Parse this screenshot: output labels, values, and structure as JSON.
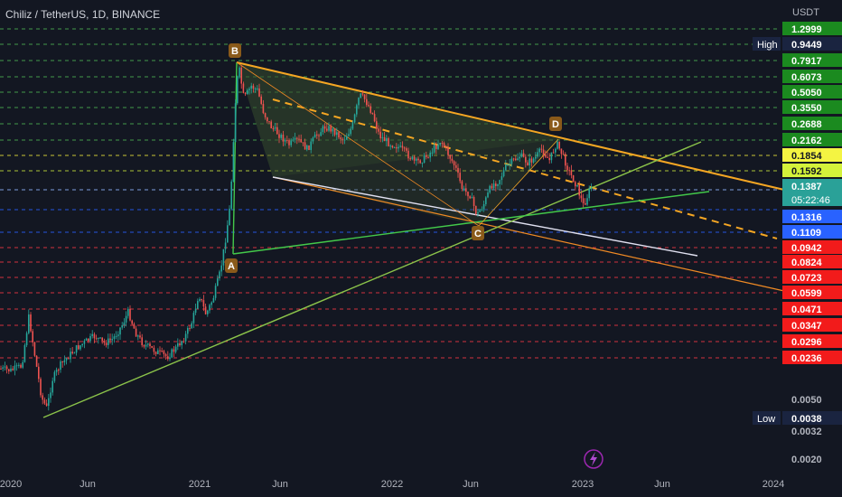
{
  "header": {
    "symbol_line": "Chiliz / TetherUS, 1D, BINANCE",
    "currency": "USDT"
  },
  "colors": {
    "background": "#131722",
    "green_line": "#4caf50",
    "red_line": "#f23645",
    "yellow_line": "#e8e33a",
    "blue_line": "#2962ff",
    "orange_trend": "#f5a623",
    "wedge_fill": "#2e4a2a",
    "candle_up": "#26a69a",
    "candle_down": "#ef5350"
  },
  "chart_data": {
    "type": "candlestick",
    "y_scale": "log",
    "x_ticks": [
      "2020",
      "Jun",
      "2021",
      "Jun",
      "2022",
      "Jun",
      "2023",
      "Jun",
      "2024"
    ],
    "price_labels": [
      {
        "value": "1.2999",
        "kind": "green"
      },
      {
        "value": "0.9449",
        "kind": "high",
        "tag": "High"
      },
      {
        "value": "0.7917",
        "kind": "green"
      },
      {
        "value": "0.6073",
        "kind": "green"
      },
      {
        "value": "0.5050",
        "kind": "green"
      },
      {
        "value": "0.3550",
        "kind": "green"
      },
      {
        "value": "0.2688",
        "kind": "green"
      },
      {
        "value": "0.2162",
        "kind": "green"
      },
      {
        "value": "0.1854",
        "kind": "yellow"
      },
      {
        "value": "0.1592",
        "kind": "yellow-green"
      },
      {
        "value": "0.1387",
        "kind": "current",
        "sub": "05:22:46"
      },
      {
        "value": "0.1316",
        "kind": "blue"
      },
      {
        "value": "0.1109",
        "kind": "blue"
      },
      {
        "value": "0.0942",
        "kind": "red"
      },
      {
        "value": "0.0824",
        "kind": "red"
      },
      {
        "value": "0.0723",
        "kind": "red"
      },
      {
        "value": "0.0599",
        "kind": "red"
      },
      {
        "value": "0.0471",
        "kind": "red"
      },
      {
        "value": "0.0347",
        "kind": "red"
      },
      {
        "value": "0.0296",
        "kind": "red"
      },
      {
        "value": "0.0236",
        "kind": "red"
      },
      {
        "value": "0.0050",
        "kind": "plain"
      },
      {
        "value": "0.0038",
        "kind": "low",
        "tag": "Low"
      },
      {
        "value": "0.0032",
        "kind": "plain"
      },
      {
        "value": "0.0020",
        "kind": "plain"
      }
    ],
    "pattern_points": [
      "A",
      "B",
      "C",
      "D"
    ],
    "current_price": 0.1387,
    "high": 0.9449,
    "low": 0.0038
  }
}
